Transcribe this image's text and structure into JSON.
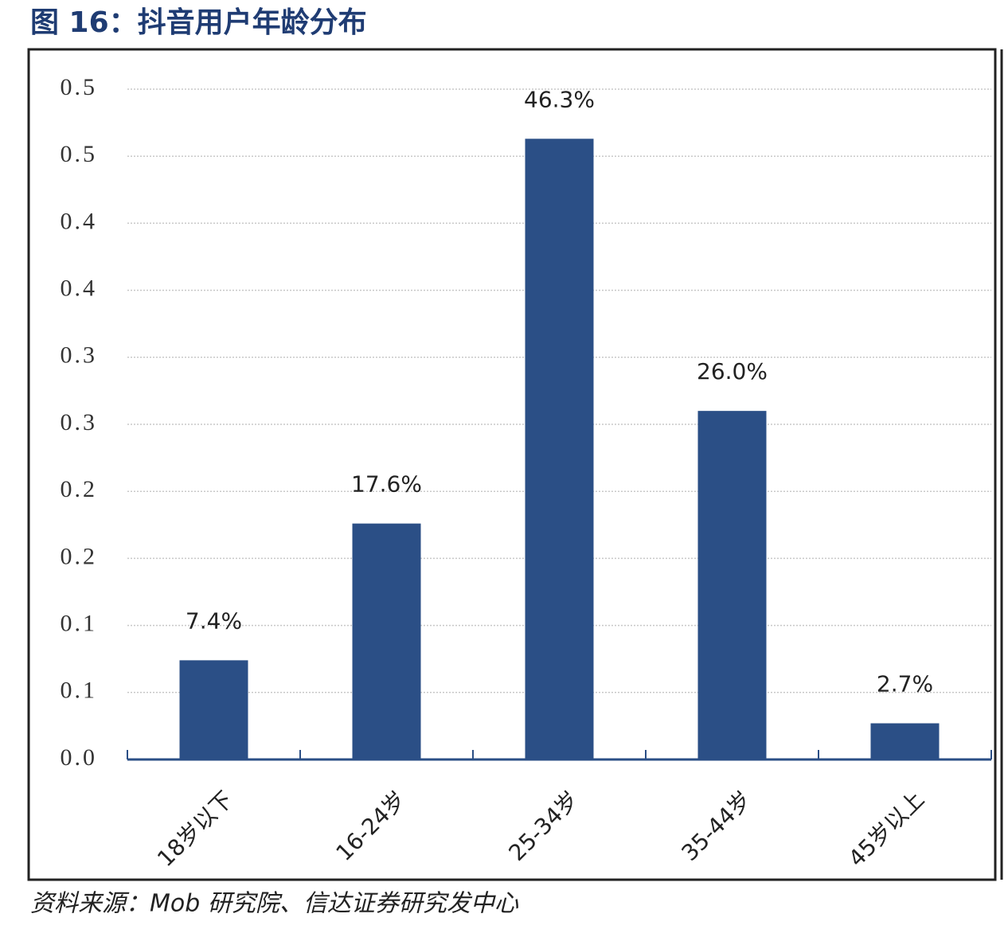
{
  "chart_data": {
    "type": "bar",
    "title": "图 16：抖音用户年龄分布",
    "source": "资料来源：Mob 研究院、信达证券研究发中心",
    "categories": [
      "18岁以下",
      "16-24岁",
      "25-34岁",
      "35-44岁",
      "45岁以上"
    ],
    "values": [
      0.074,
      0.176,
      0.463,
      0.26,
      0.027
    ],
    "value_labels": [
      "7.4%",
      "17.6%",
      "46.3%",
      "26.0%",
      "2.7%"
    ],
    "color": "#2b4f86",
    "ylim": [
      0,
      0.5
    ],
    "yticks": [
      {
        "value": 0,
        "label": "0.0"
      },
      {
        "value": 0.05,
        "label": "0.1"
      },
      0.1,
      {
        "value": 0.15,
        "label": "0.2"
      },
      0.2,
      {
        "value": 0.25,
        "label": "0.3"
      },
      0.3,
      {
        "value": 0.35,
        "label": "0.4"
      },
      0.4,
      {
        "value": 0.45,
        "label": "0.5"
      },
      0.5
    ],
    "grid": true
  }
}
